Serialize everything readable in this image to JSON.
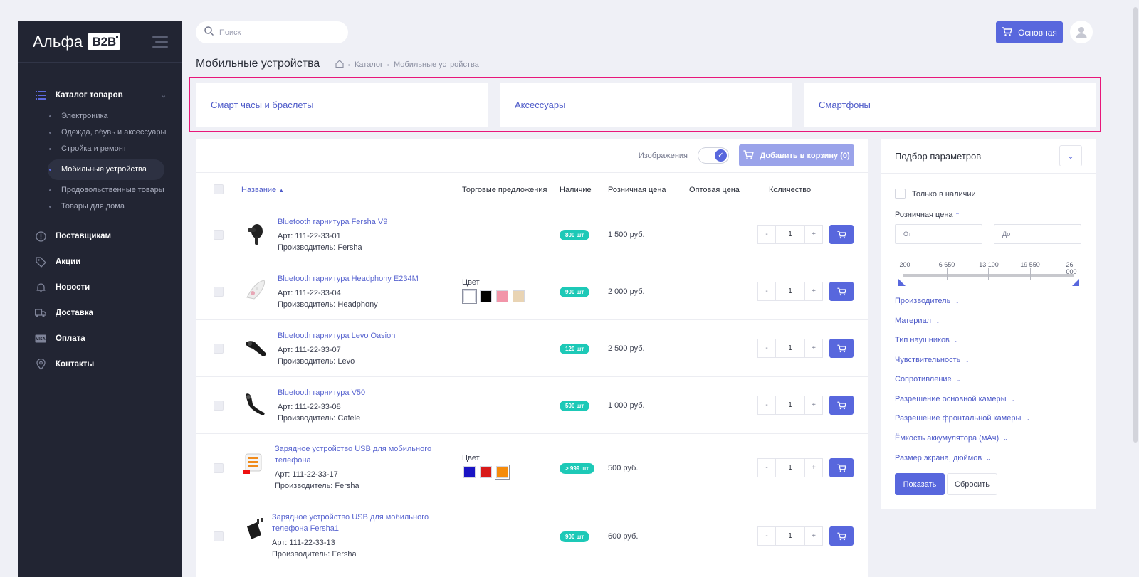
{
  "sidebar": {
    "logo_text": "Альфа",
    "logo_badge": "B2B",
    "catalog_label": "Каталог товаров",
    "sub_items": [
      {
        "label": "Электроника"
      },
      {
        "label": "Одежда, обувь и аксессуары"
      },
      {
        "label": "Стройка и ремонт"
      },
      {
        "label": "Мобильные устройства",
        "active": true
      },
      {
        "label": "Продовольственные товары"
      },
      {
        "label": "Товары для дома"
      }
    ],
    "nav": [
      {
        "label": "Поставщикам",
        "icon": "info-icon"
      },
      {
        "label": "Акции",
        "icon": "tag-icon"
      },
      {
        "label": "Новости",
        "icon": "bell-icon"
      },
      {
        "label": "Доставка",
        "icon": "truck-icon"
      },
      {
        "label": "Оплата",
        "icon": "card-icon"
      },
      {
        "label": "Контакты",
        "icon": "location-icon"
      }
    ]
  },
  "header": {
    "search_placeholder": "Поиск",
    "cart_label": "Основная"
  },
  "page": {
    "title": "Мобильные устройства",
    "breadcrumb": [
      "Каталог",
      "Мобильные устройства"
    ]
  },
  "categories": [
    "Смарт часы и браслеты",
    "Аксессуары",
    "Смартфоны"
  ],
  "toolbar": {
    "images_label": "Изображения",
    "add_to_cart": "Добавить в корзину (0)"
  },
  "table": {
    "headers": {
      "name": "Название",
      "offers": "Торговые предложения",
      "stock": "Наличие",
      "retail": "Розничная цена",
      "wholesale": "Оптовая цена",
      "qty": "Количество"
    },
    "color_label": "Цвет",
    "rows": [
      {
        "name": "Bluetooth гарнитура Fersha V9",
        "art": "Арт: 111-22-33-01",
        "maker": "Производитель: Fersha",
        "stock": "800 шт",
        "price": "1 500 руб.",
        "qty": "1",
        "colors": []
      },
      {
        "name": "Bluetooth гарнитура Headphony E234M",
        "art": "Арт: 111-22-33-04",
        "maker": "Производитель: Headphony",
        "stock": "900 шт",
        "price": "2 000 руб.",
        "qty": "1",
        "colors": [
          "#ffffff",
          "#000000",
          "#f295a9",
          "#e9d4b4"
        ]
      },
      {
        "name": "Bluetooth гарнитура Levo Oasion",
        "art": "Арт: 111-22-33-07",
        "maker": "Производитель: Levo",
        "stock": "120 шт",
        "price": "2 500 руб.",
        "qty": "1",
        "colors": []
      },
      {
        "name": "Bluetooth гарнитура V50",
        "art": "Арт: 111-22-33-08",
        "maker": "Производитель: Cafele",
        "stock": "500 шт",
        "price": "1 000 руб.",
        "qty": "1",
        "colors": []
      },
      {
        "name": "Зарядное устройство USB для мобильного телефона",
        "art": "Арт: 111-22-33-17",
        "maker": "Производитель: Fersha",
        "stock": "> 999 шт",
        "price": "500 руб.",
        "qty": "1",
        "colors": [
          "#1a14c4",
          "#d81a1a",
          "#f58b0c"
        ]
      },
      {
        "name": "Зарядное устройство USB для мобильного телефона Fersha1",
        "art": "Арт: 111-22-33-13",
        "maker": "Производитель: Fersha",
        "stock": "900 шт",
        "price": "600 руб.",
        "qty": "1",
        "colors": []
      }
    ]
  },
  "filter": {
    "title": "Подбор параметров",
    "only_in_stock": "Только в наличии",
    "retail_price": "Розничная цена",
    "from_placeholder": "От",
    "to_placeholder": "До",
    "range_ticks": [
      "200",
      "6 650",
      "13 100",
      "19 550",
      "26 000"
    ],
    "properties": [
      "Производитель",
      "Материал",
      "Тип наушников",
      "Чувствительность",
      "Сопротивление",
      "Разрешение основной камеры",
      "Разрешение фронтальной камеры",
      "Ёмкость аккумулятора (мАч)",
      "Размер экрана, дюймов"
    ],
    "show_label": "Показать",
    "reset_label": "Сбросить"
  },
  "colors": {
    "accent": "#5867dd",
    "sidebar_bg": "#222533",
    "stock_badge": "#1dc9b7",
    "highlight_frame": "#e8177a"
  }
}
